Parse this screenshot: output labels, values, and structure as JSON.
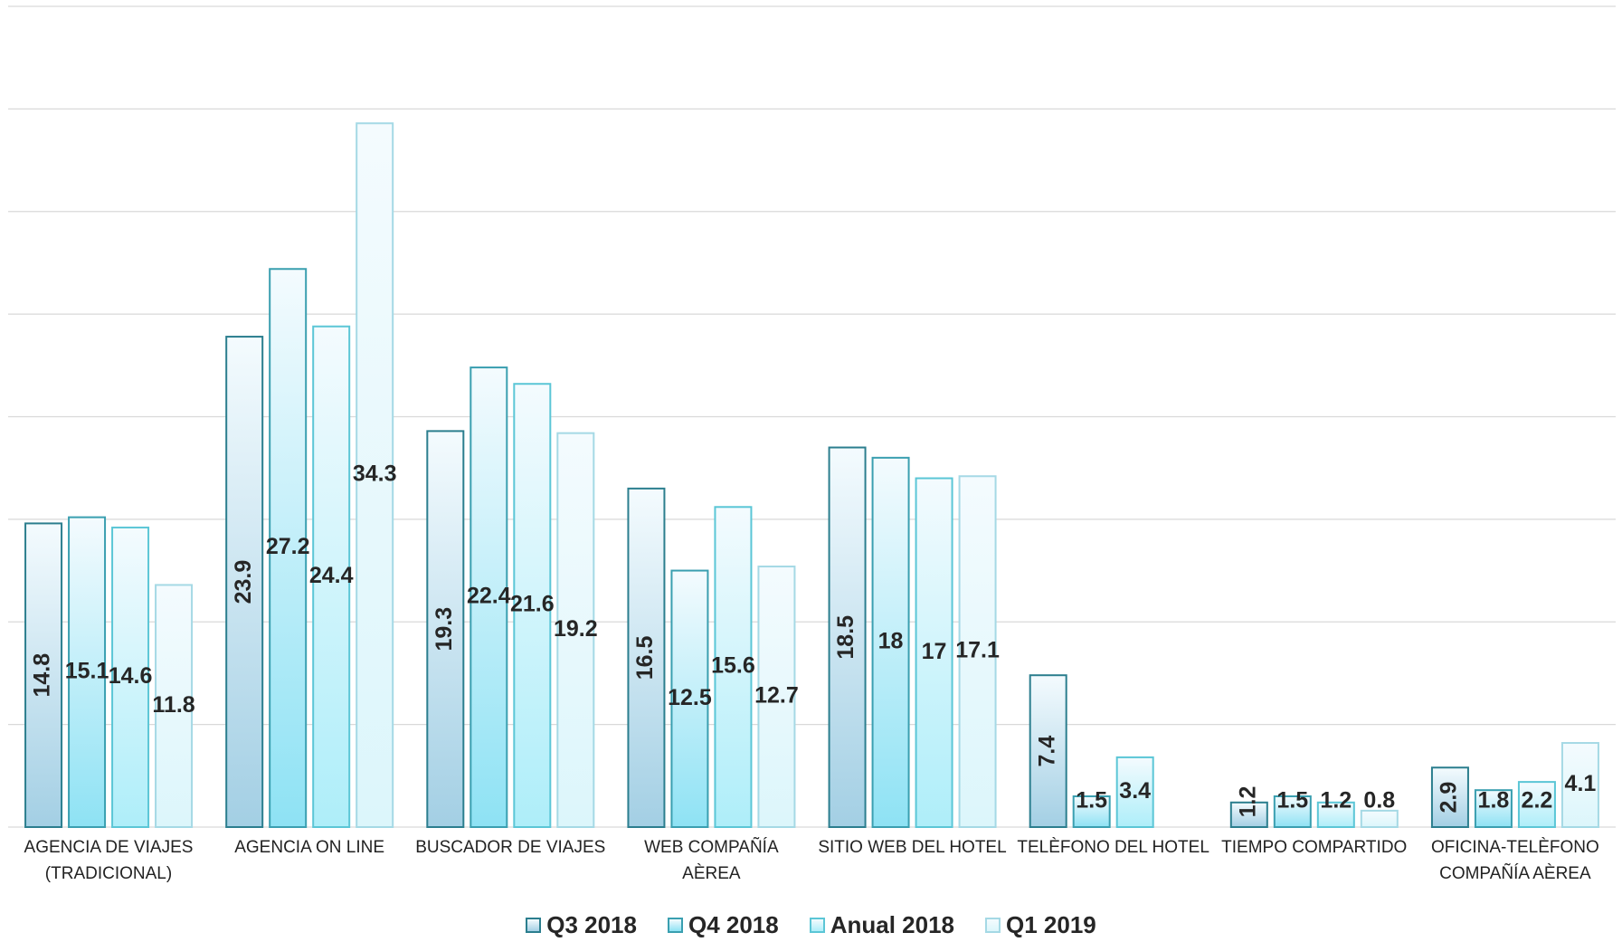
{
  "chart_data": {
    "type": "bar",
    "categories": [
      "AGENCIA DE VIAJES\n(TRADICIONAL)",
      "AGENCIA ON LINE",
      "BUSCADOR DE VIAJES",
      "WEB COMPAÑÍA\nAÈREA",
      "SITIO WEB DEL HOTEL",
      "TELÈFONO DEL HOTEL",
      "TIEMPO COMPARTIDO",
      "OFICINA-TELÈFONO\nCOMPAÑÍA AÈREA"
    ],
    "series": [
      {
        "name": "Q3 2018",
        "color": "#a3cfe4",
        "edgecolor": "#2b7e8e",
        "values": [
          14.8,
          23.9,
          19.3,
          16.5,
          18.5,
          7.4,
          1.2,
          2.9
        ]
      },
      {
        "name": "Q4 2018",
        "color": "#8ee2f4",
        "edgecolor": "#3a9fb0",
        "values": [
          15.1,
          27.2,
          22.4,
          12.5,
          18,
          1.5,
          1.5,
          1.8
        ]
      },
      {
        "name": "Anual 2018",
        "color": "#aeeef9",
        "edgecolor": "#5bc6d6",
        "values": [
          14.6,
          24.4,
          21.6,
          15.6,
          17,
          3.4,
          1.2,
          2.2
        ]
      },
      {
        "name": "Q1 2019",
        "color": "#dcf6fb",
        "edgecolor": "#a5d9e5",
        "values": [
          11.8,
          34.3,
          19.2,
          12.7,
          17.1,
          null,
          0.8,
          4.1
        ]
      }
    ],
    "ylim": [
      0,
      40
    ],
    "yticks": [
      0,
      5,
      10,
      15,
      20,
      25,
      30,
      35,
      40
    ],
    "grid": true
  }
}
